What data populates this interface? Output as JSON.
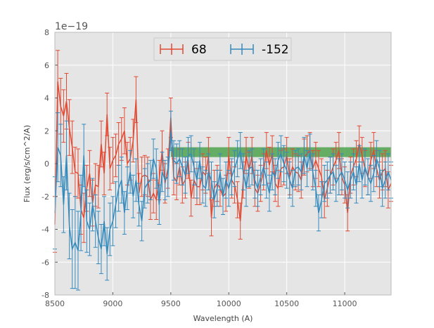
{
  "chart_data": {
    "type": "line",
    "xlabel": "Wavelength (A)",
    "ylabel": "Flux (erg/s/cm^2/A)",
    "xlim": [
      8500,
      11400
    ],
    "ylim": [
      -8,
      8
    ],
    "y_offset_text": "1e−19",
    "x_ticks": [
      8500,
      9000,
      9500,
      10000,
      10500,
      11000
    ],
    "y_ticks": [
      -8,
      -6,
      -4,
      -2,
      0,
      2,
      4,
      6,
      8
    ],
    "grid": true,
    "legend_placement": "top-center",
    "background": "#e5e5e5",
    "highlight_band": {
      "x": [
        9500,
        11400
      ],
      "y": [
        0.4,
        1.0
      ],
      "color": "#3a9a3a"
    },
    "series": [
      {
        "name": "68",
        "color": "#e24a33",
        "x": [
          8500,
          8525,
          8550,
          8575,
          8600,
          8625,
          8650,
          8675,
          8700,
          8725,
          8750,
          8775,
          8800,
          8825,
          8850,
          8875,
          8900,
          8925,
          8950,
          8975,
          9000,
          9025,
          9050,
          9075,
          9100,
          9125,
          9150,
          9175,
          9200,
          9225,
          9250,
          9275,
          9300,
          9325,
          9350,
          9375,
          9400,
          9425,
          9450,
          9475,
          9500,
          9525,
          9550,
          9575,
          9600,
          9625,
          9650,
          9675,
          9700,
          9725,
          9750,
          9775,
          9800,
          9825,
          9850,
          9875,
          9900,
          9925,
          9950,
          9975,
          10000,
          10025,
          10050,
          10075,
          10100,
          10125,
          10150,
          10175,
          10200,
          10225,
          10250,
          10275,
          10300,
          10325,
          10350,
          10375,
          10400,
          10425,
          10450,
          10475,
          10500,
          10525,
          10550,
          10575,
          10600,
          10625,
          10650,
          10675,
          10700,
          10725,
          10750,
          10775,
          10800,
          10825,
          10850,
          10875,
          10900,
          10925,
          10950,
          10975,
          11000,
          11025,
          11050,
          11075,
          11100,
          11125,
          11150,
          11175,
          11200,
          11225,
          11250,
          11275,
          11300,
          11325,
          11350,
          11375,
          11400
        ],
        "y": [
          -3.7,
          5.0,
          3.5,
          2.9,
          3.8,
          2.2,
          1.0,
          -0.5,
          -0.6,
          -2.8,
          -3.3,
          -1.5,
          -0.6,
          -2.4,
          -1.3,
          -1.4,
          1.2,
          -0.6,
          3.0,
          -0.3,
          0.2,
          0.5,
          1.2,
          1.5,
          2.0,
          0.0,
          0.3,
          1.4,
          3.9,
          -1.8,
          -0.8,
          -0.7,
          -0.8,
          -2.2,
          -1.8,
          -2.2,
          -1.0,
          0.8,
          -1.2,
          -0.3,
          2.8,
          -0.8,
          -1.1,
          -0.2,
          -1.3,
          -1.0,
          0.2,
          -2.1,
          -1.0,
          -1.4,
          -1.4,
          -0.5,
          -0.7,
          0.5,
          -3.3,
          -1.5,
          -1.2,
          -1.5,
          -2.0,
          -1.8,
          0.5,
          -1.0,
          -1.3,
          -2.2,
          -3.5,
          -1.0,
          0.5,
          -0.4,
          0.5,
          -1.5,
          -1.8,
          -1.2,
          -0.5,
          0.8,
          -0.1,
          0.6,
          -1.2,
          -1.5,
          -0.3,
          -0.2,
          0.5,
          -0.8,
          -0.2,
          -0.5,
          -0.6,
          -1.0,
          0.4,
          0.6,
          0.8,
          -0.3,
          0.2,
          -0.3,
          -0.8,
          -2.2,
          -1.5,
          -0.7,
          -0.2,
          0.2,
          0.8,
          -0.8,
          -1.3,
          -3.0,
          -0.7,
          -0.2,
          0.3,
          1.2,
          0.5,
          -0.3,
          -0.8,
          0.2,
          0.8,
          -0.3,
          -1.0,
          -0.5,
          -0.3,
          -1.6,
          -1.2
        ],
        "err": [
          1.7,
          1.9,
          1.7,
          1.6,
          1.7,
          1.7,
          1.6,
          1.5,
          1.5,
          1.5,
          1.5,
          1.4,
          1.4,
          1.4,
          1.3,
          1.3,
          1.4,
          1.3,
          1.3,
          1.3,
          1.4,
          1.3,
          1.3,
          1.3,
          1.4,
          1.3,
          1.3,
          1.3,
          1.4,
          1.2,
          1.2,
          1.2,
          1.2,
          1.2,
          1.2,
          1.2,
          1.2,
          1.2,
          1.2,
          1.2,
          1.2,
          1.1,
          1.1,
          1.1,
          1.1,
          1.1,
          1.1,
          1.1,
          1.1,
          1.1,
          1.1,
          1.1,
          1.1,
          1.1,
          1.1,
          1.1,
          1.1,
          1.1,
          1.1,
          1.1,
          1.1,
          1.1,
          1.1,
          1.1,
          1.1,
          1.1,
          1.1,
          1.1,
          1.1,
          1.1,
          1.1,
          1.1,
          1.1,
          1.1,
          1.1,
          1.1,
          1.1,
          1.1,
          1.1,
          1.1,
          1.1,
          1.1,
          1.1,
          1.1,
          1.1,
          1.1,
          1.1,
          1.1,
          1.1,
          1.1,
          1.1,
          1.1,
          1.1,
          1.1,
          1.1,
          1.1,
          1.1,
          1.1,
          1.1,
          1.1,
          1.1,
          1.1,
          1.1,
          1.1,
          1.1,
          1.1,
          1.1,
          1.1,
          1.1,
          1.1,
          1.1,
          1.1,
          1.1,
          1.1,
          1.1,
          1.1,
          1.1
        ]
      },
      {
        "name": "-152",
        "color": "#348abd",
        "x": [
          8500,
          8525,
          8550,
          8575,
          8600,
          8625,
          8650,
          8675,
          8700,
          8725,
          8750,
          8775,
          8800,
          8825,
          8850,
          8875,
          8900,
          8925,
          8950,
          8975,
          9000,
          9025,
          9050,
          9075,
          9100,
          9125,
          9150,
          9175,
          9200,
          9225,
          9250,
          9275,
          9300,
          9325,
          9350,
          9375,
          9400,
          9425,
          9450,
          9475,
          9500,
          9525,
          9550,
          9575,
          9600,
          9625,
          9650,
          9675,
          9700,
          9725,
          9750,
          9775,
          9800,
          9825,
          9850,
          9875,
          9900,
          9925,
          9950,
          9975,
          10000,
          10025,
          10050,
          10075,
          10100,
          10125,
          10150,
          10175,
          10200,
          10225,
          10250,
          10275,
          10300,
          10325,
          10350,
          10375,
          10400,
          10425,
          10450,
          10475,
          10500,
          10525,
          10550,
          10575,
          10600,
          10625,
          10650,
          10675,
          10700,
          10725,
          10750,
          10775,
          10800,
          10825,
          10850,
          10875,
          10900,
          10925,
          10950,
          10975,
          11000,
          11025,
          11050,
          11075,
          11100,
          11125,
          11150,
          11175,
          11200,
          11225,
          11250,
          11275,
          11300,
          11325,
          11350,
          11375,
          11400
        ],
        "y": [
          -3.0,
          1.0,
          0.5,
          -2.5,
          0.5,
          -3.8,
          -5.2,
          -4.8,
          -5.3,
          -3.0,
          0.5,
          -3.5,
          -4.0,
          -2.5,
          -3.5,
          -4.5,
          -5.2,
          -3.5,
          -5.5,
          -4.0,
          -3.5,
          -2.5,
          -1.5,
          -1.0,
          -3.0,
          -1.5,
          -0.5,
          -2.0,
          -1.0,
          -2.5,
          -3.5,
          -1.5,
          -1.2,
          -1.0,
          0.3,
          -0.3,
          -2.5,
          -0.5,
          -1.0,
          -0.8,
          2.0,
          0.2,
          0.0,
          0.3,
          -0.2,
          -0.7,
          0.5,
          0.6,
          -0.2,
          -1.0,
          0.2,
          -1.3,
          -1.5,
          -0.5,
          -1.0,
          -2.2,
          -1.5,
          -0.5,
          -2.0,
          -1.0,
          -1.5,
          -0.8,
          -0.3,
          0.3,
          0.8,
          -0.5,
          -1.5,
          -0.3,
          -0.2,
          -1.0,
          -1.5,
          -0.8,
          -0.2,
          -1.0,
          -1.8,
          -0.5,
          -0.8,
          0.2,
          0.6,
          0.0,
          -0.4,
          -1.0,
          -1.5,
          -0.3,
          -0.2,
          -0.5,
          0.5,
          -0.3,
          0.7,
          -0.5,
          -1.5,
          -3.0,
          -2.2,
          -1.2,
          -1.0,
          -0.7,
          -0.5,
          -1.2,
          -0.8,
          -0.5,
          -1.0,
          -1.6,
          -1.0,
          -0.5,
          -1.3,
          0.0,
          -1.0,
          -0.2,
          -0.8,
          -1.2,
          -0.6,
          0.3,
          -0.3,
          -1.5,
          -1.0,
          -0.5,
          -1.0
        ],
        "err": [
          2.2,
          2.1,
          1.9,
          1.7,
          2.1,
          2.0,
          2.4,
          2.8,
          2.4,
          2.3,
          1.9,
          1.9,
          1.6,
          1.6,
          1.6,
          1.6,
          1.5,
          1.5,
          1.6,
          1.6,
          1.5,
          1.4,
          1.4,
          1.4,
          1.3,
          1.3,
          1.3,
          1.3,
          1.3,
          1.3,
          1.2,
          1.2,
          1.2,
          1.2,
          1.2,
          1.2,
          1.2,
          1.2,
          1.2,
          1.2,
          1.2,
          1.2,
          1.2,
          1.1,
          1.1,
          1.1,
          1.1,
          1.1,
          1.1,
          1.1,
          1.1,
          1.1,
          1.1,
          1.1,
          1.1,
          1.1,
          1.1,
          1.1,
          1.1,
          1.1,
          1.1,
          1.1,
          1.1,
          1.1,
          1.1,
          1.1,
          1.1,
          1.1,
          1.1,
          1.1,
          1.1,
          1.1,
          1.1,
          1.1,
          1.1,
          1.1,
          1.1,
          1.1,
          1.1,
          1.1,
          1.1,
          1.1,
          1.1,
          1.1,
          1.1,
          1.1,
          1.1,
          1.1,
          1.1,
          1.1,
          1.1,
          1.1,
          1.1,
          1.1,
          1.1,
          1.1,
          1.1,
          1.1,
          1.1,
          1.1,
          1.1,
          1.1,
          1.1,
          1.1,
          1.1,
          1.1,
          1.1,
          1.1,
          1.1,
          1.1,
          1.1,
          1.1,
          1.1,
          1.1,
          1.1,
          1.1,
          1.1
        ]
      }
    ]
  }
}
